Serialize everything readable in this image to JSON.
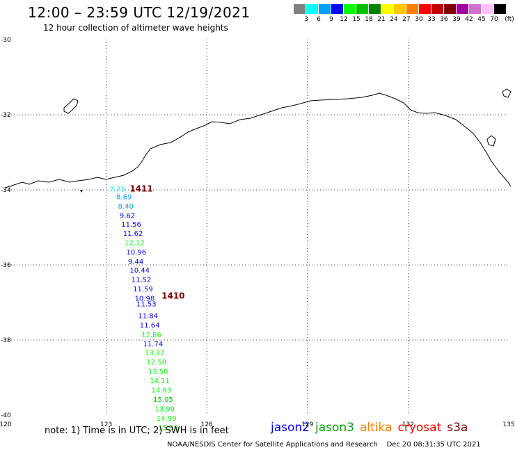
{
  "header": {
    "title": "12:00 – 23:59 UTC 12/19/2021",
    "subtitle": "12 hour collection of altimeter wave heights"
  },
  "color_scale": {
    "unit_label": "(ft)",
    "swatches": [
      {
        "label": "3",
        "color": "#808080"
      },
      {
        "label": "6",
        "color": "#00ffff"
      },
      {
        "label": "9",
        "color": "#00a0ff"
      },
      {
        "label": "12",
        "color": "#0000ff"
      },
      {
        "label": "15",
        "color": "#00ff00"
      },
      {
        "label": "18",
        "color": "#00c000"
      },
      {
        "label": "21",
        "color": "#008000"
      },
      {
        "label": "24",
        "color": "#ffff00"
      },
      {
        "label": "27",
        "color": "#ffc800"
      },
      {
        "label": "30",
        "color": "#ff8000"
      },
      {
        "label": "33",
        "color": "#ff0000"
      },
      {
        "label": "36",
        "color": "#c00000"
      },
      {
        "label": "39",
        "color": "#800000"
      },
      {
        "label": "42",
        "color": "#a000a0"
      },
      {
        "label": "45",
        "color": "#d070d0"
      },
      {
        "label": "70",
        "color": "#ffc0ff"
      },
      {
        "label": "",
        "color": "#000000"
      }
    ]
  },
  "map": {
    "lon_range": [
      120,
      135
    ],
    "lat_range": [
      -40,
      -30
    ],
    "lon_ticks": [
      "120",
      "123",
      "126",
      "129",
      "132",
      "135"
    ],
    "lat_ticks": [
      "-30",
      "-32",
      "-34",
      "-36",
      "-38",
      "-40"
    ],
    "gridlines": true,
    "times": [
      {
        "label": "1411",
        "lon": 123.7,
        "lat": -34.05
      },
      {
        "label": "1410",
        "lon": 124.65,
        "lat": -36.9
      }
    ],
    "observations": [
      {
        "value": "7.73",
        "lon": 123.1,
        "lat": -34.05,
        "color": "#00ffff"
      },
      {
        "value": "8.69",
        "lon": 123.3,
        "lat": -34.25,
        "color": "#00a0ff"
      },
      {
        "value": "8.40",
        "lon": 123.35,
        "lat": -34.5,
        "color": "#00a0ff"
      },
      {
        "value": "9.62",
        "lon": 123.4,
        "lat": -34.75,
        "color": "#0000ff"
      },
      {
        "value": "11.56",
        "lon": 123.45,
        "lat": -34.98,
        "color": "#0000ff"
      },
      {
        "value": "11.62",
        "lon": 123.5,
        "lat": -35.22,
        "color": "#0000ff"
      },
      {
        "value": "12.12",
        "lon": 123.55,
        "lat": -35.47,
        "color": "#00ff00"
      },
      {
        "value": "10.96",
        "lon": 123.6,
        "lat": -35.72,
        "color": "#0000ff"
      },
      {
        "value": "9.44",
        "lon": 123.65,
        "lat": -35.97,
        "color": "#0000ff"
      },
      {
        "value": "10.44",
        "lon": 123.7,
        "lat": -36.2,
        "color": "#0000ff"
      },
      {
        "value": "11.52",
        "lon": 123.75,
        "lat": -36.45,
        "color": "#0000ff"
      },
      {
        "value": "11.59",
        "lon": 123.8,
        "lat": -36.7,
        "color": "#0000ff"
      },
      {
        "value": "10.98",
        "lon": 123.85,
        "lat": -36.95,
        "color": "#0000ff"
      },
      {
        "value": "11.53",
        "lon": 123.9,
        "lat": -37.1,
        "color": "#0000ff"
      },
      {
        "value": "11.84",
        "lon": 123.95,
        "lat": -37.42,
        "color": "#0000ff"
      },
      {
        "value": "11.64",
        "lon": 124.0,
        "lat": -37.67,
        "color": "#0000ff"
      },
      {
        "value": "12.86",
        "lon": 124.05,
        "lat": -37.92,
        "color": "#00ff00"
      },
      {
        "value": "11.74",
        "lon": 124.1,
        "lat": -38.17,
        "color": "#0000ff"
      },
      {
        "value": "13.32",
        "lon": 124.15,
        "lat": -38.4,
        "color": "#00ff00"
      },
      {
        "value": "12.58",
        "lon": 124.2,
        "lat": -38.65,
        "color": "#00ff00"
      },
      {
        "value": "13.50",
        "lon": 124.25,
        "lat": -38.9,
        "color": "#00ff00"
      },
      {
        "value": "14.11",
        "lon": 124.3,
        "lat": -39.15,
        "color": "#00ff00"
      },
      {
        "value": "14.63",
        "lon": 124.35,
        "lat": -39.4,
        "color": "#00ff00"
      },
      {
        "value": "15.05",
        "lon": 124.4,
        "lat": -39.65,
        "color": "#00c000"
      },
      {
        "value": "13.99",
        "lon": 124.45,
        "lat": -39.9,
        "color": "#00ff00"
      },
      {
        "value": "14.99",
        "lon": 124.5,
        "lat": -40.15,
        "color": "#00ff00"
      },
      {
        "value": "15.53",
        "lon": 124.55,
        "lat": -40.4,
        "color": "#00c000"
      }
    ]
  },
  "footer": {
    "note": "note: 1) Time is in UTC; 2) SWH is in feet",
    "satellites": [
      {
        "name": "jason2",
        "color": "#0000ff"
      },
      {
        "name": "jason3",
        "color": "#00a000"
      },
      {
        "name": "altika",
        "color": "#ff8000"
      },
      {
        "name": "cryosat",
        "color": "#ff0000"
      },
      {
        "name": "s3a",
        "color": "#800000"
      }
    ],
    "credit": "NOAA/NESDIS Center for Satellite Applications and Research",
    "timestamp": "Dec 20 08:31:35 UTC 2021"
  }
}
